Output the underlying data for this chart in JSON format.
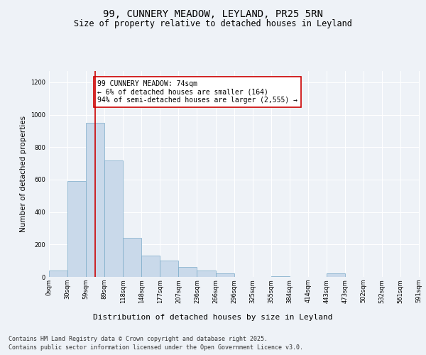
{
  "title": "99, CUNNERY MEADOW, LEYLAND, PR25 5RN",
  "subtitle": "Size of property relative to detached houses in Leyland",
  "xlabel": "Distribution of detached houses by size in Leyland",
  "ylabel": "Number of detached properties",
  "bin_labels": [
    "0sqm",
    "30sqm",
    "59sqm",
    "89sqm",
    "118sqm",
    "148sqm",
    "177sqm",
    "207sqm",
    "236sqm",
    "266sqm",
    "296sqm",
    "325sqm",
    "355sqm",
    "384sqm",
    "414sqm",
    "443sqm",
    "473sqm",
    "502sqm",
    "532sqm",
    "561sqm",
    "591sqm"
  ],
  "bin_lefts": [
    0,
    29.5,
    59,
    88.5,
    118,
    147.5,
    177,
    206.5,
    236,
    265.5,
    295,
    324.5,
    354,
    383.5,
    413,
    442.5,
    472,
    501.5,
    531,
    560.5
  ],
  "bar_width": 29.5,
  "bar_heights": [
    40,
    590,
    950,
    720,
    240,
    130,
    100,
    60,
    40,
    20,
    0,
    0,
    5,
    0,
    0,
    20,
    0,
    0,
    0,
    0
  ],
  "bar_color": "#c9d9ea",
  "bar_edge_color": "#7aaac8",
  "property_line_x": 74,
  "property_line_color": "#cc0000",
  "annotation_text": "99 CUNNERY MEADOW: 74sqm\n← 6% of detached houses are smaller (164)\n94% of semi-detached houses are larger (2,555) →",
  "annotation_box_color": "#cc0000",
  "xlim": [
    0,
    591
  ],
  "ylim": [
    0,
    1270
  ],
  "yticks": [
    0,
    200,
    400,
    600,
    800,
    1000,
    1200
  ],
  "background_color": "#eef2f7",
  "plot_background": "#eef2f7",
  "footer_line1": "Contains HM Land Registry data © Crown copyright and database right 2025.",
  "footer_line2": "Contains public sector information licensed under the Open Government Licence v3.0.",
  "title_fontsize": 10,
  "subtitle_fontsize": 8.5,
  "ylabel_fontsize": 7.5,
  "xlabel_fontsize": 8,
  "tick_fontsize": 6,
  "annotation_fontsize": 7,
  "footer_fontsize": 6
}
